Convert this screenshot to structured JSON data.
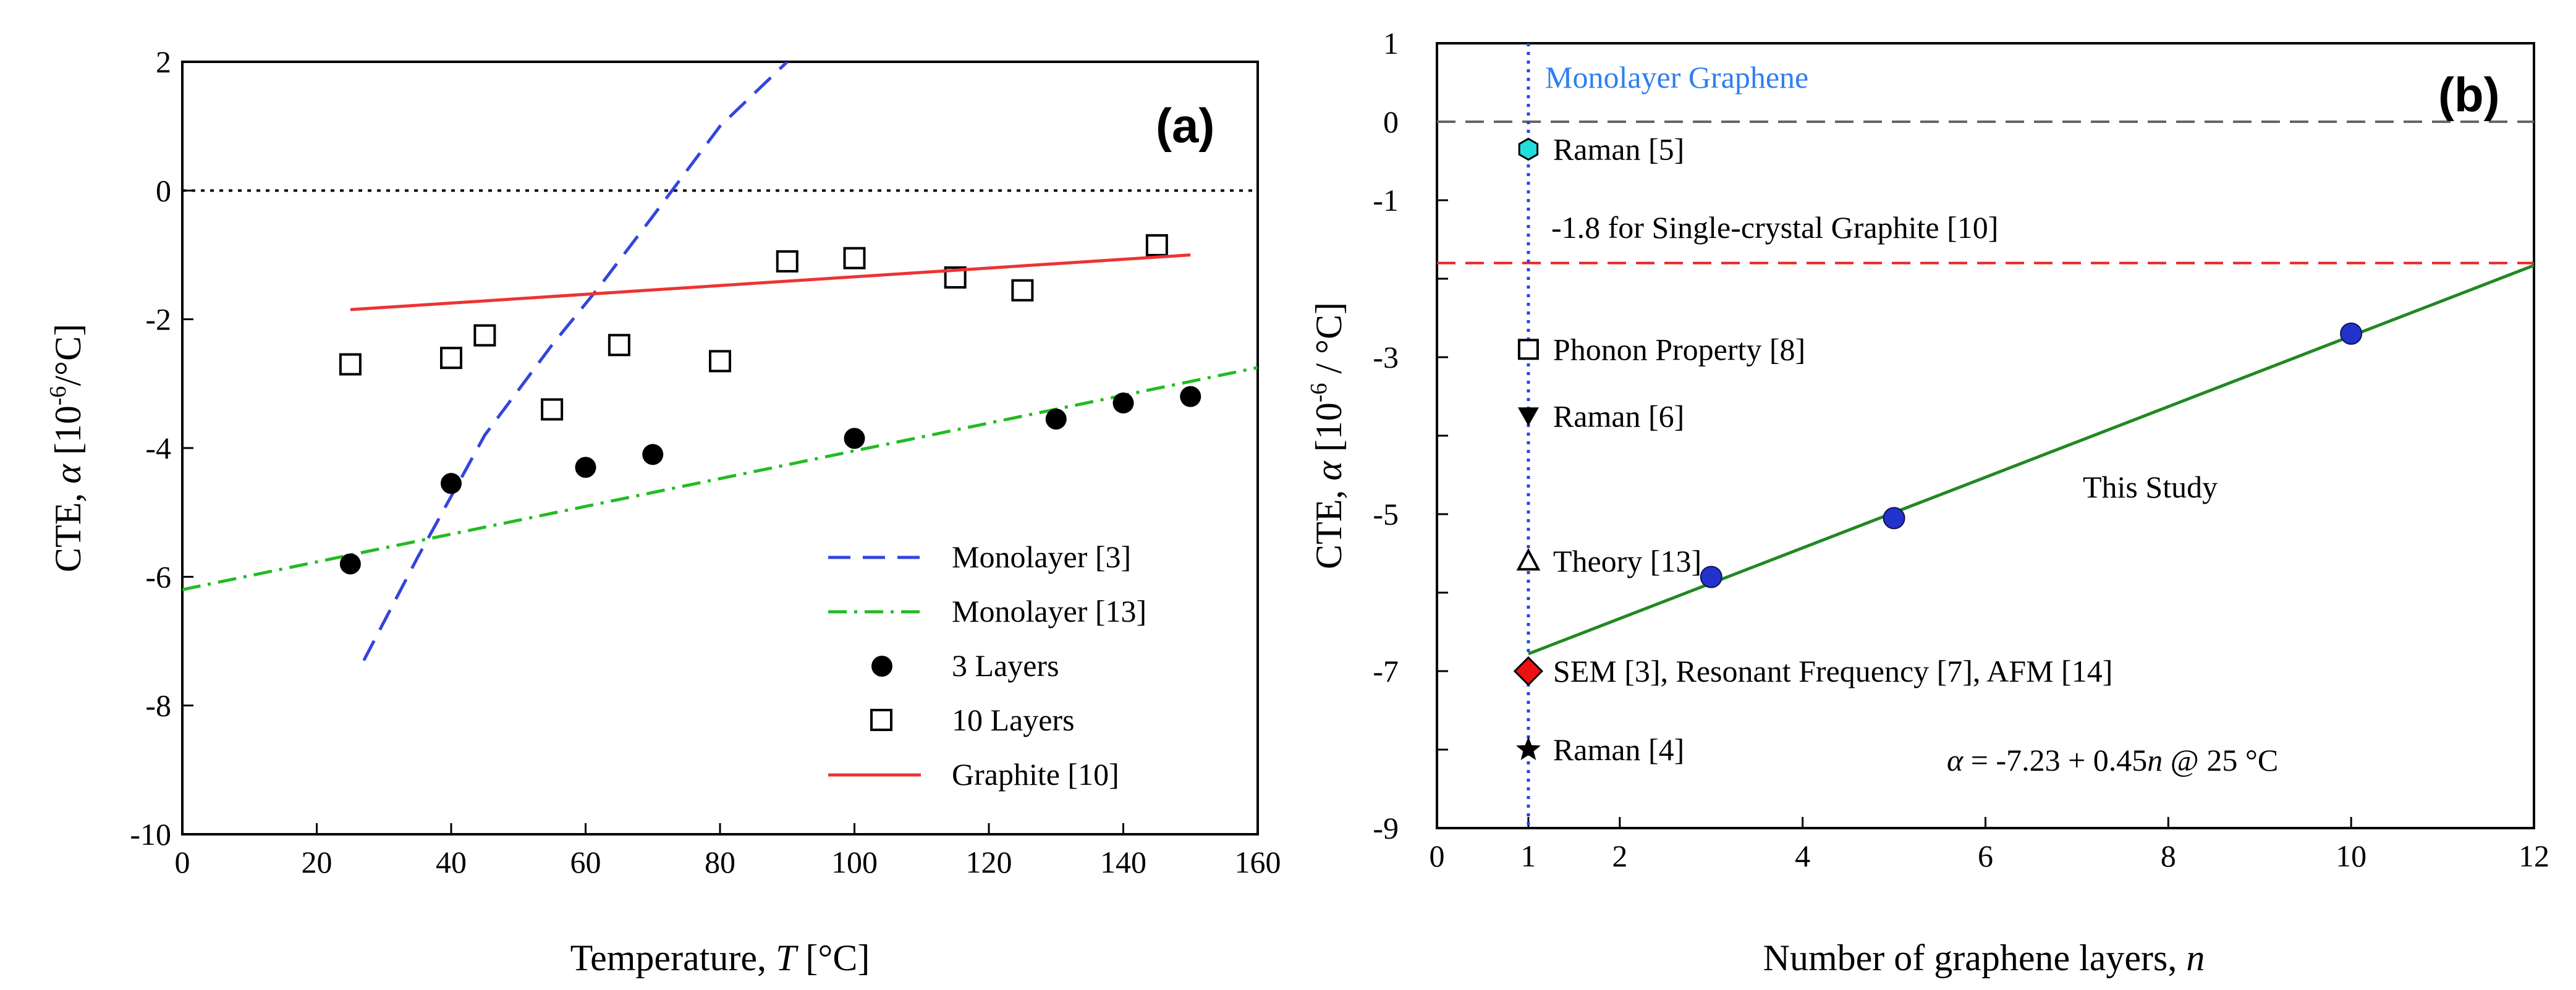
{
  "chart_data": [
    {
      "type": "scatter",
      "panel_label": "(a)",
      "xlabel_main": "Temperature, ",
      "xlabel_var": "T",
      "xlabel_unit": " [°C]",
      "ylabel_main": "CTE, ",
      "ylabel_var": "α",
      "ylabel_unit": " [10",
      "ylabel_exp": "-6",
      "ylabel_end": "/°C]",
      "xlim": [
        0,
        160
      ],
      "ylim": [
        -10,
        2
      ],
      "xticks": [
        "0",
        "20",
        "40",
        "60",
        "80",
        "100",
        "120",
        "140",
        "160"
      ],
      "yticks": [
        "2",
        "0",
        "-2",
        "-4",
        "-6",
        "-8",
        "-10"
      ],
      "legend_position": "lower-right",
      "series": [
        {
          "name": "Monolayer [3]",
          "kind": "dashed-line",
          "color": "#3344dd",
          "x": [
            27,
            35,
            45,
            55,
            62,
            70,
            80,
            90
          ],
          "y": [
            -7.3,
            -5.7,
            -3.8,
            -2.4,
            -1.5,
            -0.4,
            1.0,
            2.0
          ]
        },
        {
          "name": "Monolayer [13]",
          "kind": "dashdot-line",
          "color": "#22bb22",
          "x": [
            0,
            160
          ],
          "y": [
            -6.2,
            -2.75
          ]
        },
        {
          "name": "3 Layers",
          "kind": "filled-circle",
          "color": "#000000",
          "x": [
            25,
            40,
            60,
            70,
            100,
            130,
            140,
            150
          ],
          "y": [
            -5.8,
            -4.55,
            -4.3,
            -4.1,
            -3.85,
            -3.55,
            -3.3,
            -3.2
          ]
        },
        {
          "name": "10 Layers",
          "kind": "open-square",
          "color": "#000000",
          "x": [
            25,
            40,
            45,
            55,
            65,
            80,
            90,
            100,
            115,
            125,
            145
          ],
          "y": [
            -2.7,
            -2.6,
            -2.25,
            -3.4,
            -2.4,
            -2.65,
            -1.1,
            -1.05,
            -1.35,
            -1.55,
            -0.85
          ]
        },
        {
          "name": "Graphite [10]",
          "kind": "solid-line",
          "color": "#ee3333",
          "x": [
            25,
            150
          ],
          "y": [
            -1.85,
            -1.0
          ]
        }
      ],
      "reference_lines": [
        {
          "y": 0,
          "style": "dotted",
          "color": "#000000"
        }
      ]
    },
    {
      "type": "scatter",
      "panel_label": "(b)",
      "xlabel_main": "Number of graphene layers, ",
      "xlabel_var": "n",
      "ylabel_main": "CTE, ",
      "ylabel_var": "α",
      "ylabel_unit": " [10",
      "ylabel_exp": "-6",
      "ylabel_end": " / °C]",
      "xlim": [
        0,
        12
      ],
      "ylim": [
        -9,
        1
      ],
      "xticks": [
        "0",
        "1",
        "2",
        "4",
        "6",
        "8",
        "10",
        "12"
      ],
      "xtick_values": [
        0,
        1,
        2,
        4,
        6,
        8,
        10,
        12
      ],
      "yticks": [
        "1",
        "0",
        "-1",
        "-3",
        "-5",
        "-7",
        "-9"
      ],
      "ytick_values": [
        1,
        0,
        -1,
        -3,
        -5,
        -7,
        -9
      ],
      "monolayer_label": "Monolayer Graphene",
      "single_crystal_label": "-1.8 for Single-crystal Graphite [10]",
      "this_study_label": "This Study",
      "equation": {
        "lhs": "α",
        "mid": " = -7.23 + 0.45",
        "var": "n",
        "rest": " @ 25 °C"
      },
      "fit_line": {
        "x": [
          1,
          12
        ],
        "y": [
          -6.78,
          -1.83
        ],
        "color": "#228822"
      },
      "reference_lines": [
        {
          "y": 0,
          "style": "dashed",
          "color": "#666666"
        },
        {
          "y": -1.8,
          "style": "dashed",
          "color": "#ee2222"
        },
        {
          "x": 1,
          "style": "dotted",
          "color": "#2244ee"
        }
      ],
      "this_study_points": {
        "x": [
          3,
          5,
          10
        ],
        "y": [
          -5.8,
          -5.05,
          -2.7
        ],
        "color": "#2233cc"
      },
      "literature_points": [
        {
          "label": "Raman [5]",
          "x": 1,
          "y": -0.35,
          "marker": "hexagon",
          "color": "#22dddd"
        },
        {
          "label": "Phonon Property [8]",
          "x": 1,
          "y": -2.9,
          "marker": "open-square",
          "color": "#000000"
        },
        {
          "label": "Raman [6]",
          "x": 1,
          "y": -3.75,
          "marker": "down-triangle",
          "color": "#000000"
        },
        {
          "label": "Theory [13]",
          "x": 1,
          "y": -5.6,
          "marker": "open-triangle",
          "color": "#000000"
        },
        {
          "label": "SEM [3], Resonant Frequency [7], AFM [14]",
          "x": 1,
          "y": -7.0,
          "marker": "diamond",
          "color": "#ee1111"
        },
        {
          "label": "Raman [4]",
          "x": 1,
          "y": -8.0,
          "marker": "star",
          "color": "#000000"
        }
      ]
    }
  ]
}
